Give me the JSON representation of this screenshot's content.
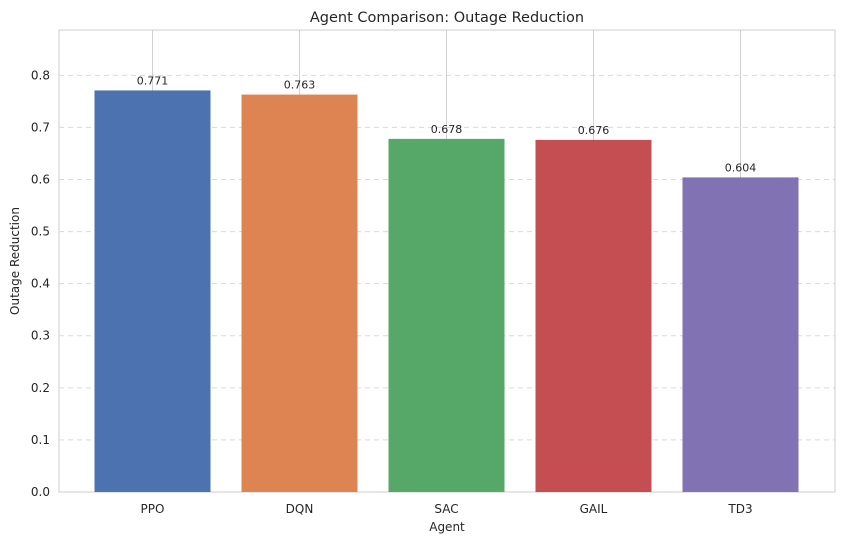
{
  "chart_data": {
    "type": "bar",
    "title": "Agent Comparison: Outage Reduction",
    "xlabel": "Agent",
    "ylabel": "Outage Reduction",
    "categories": [
      "PPO",
      "DQN",
      "SAC",
      "GAIL",
      "TD3"
    ],
    "values": [
      0.771,
      0.763,
      0.678,
      0.676,
      0.604
    ],
    "value_labels": [
      "0.771",
      "0.763",
      "0.678",
      "0.676",
      "0.604"
    ],
    "colors": [
      "#4c72b0",
      "#dd8452",
      "#55a868",
      "#c44e52",
      "#8172b3"
    ],
    "ylim": [
      0,
      0.887
    ],
    "yticks": [
      0.0,
      0.1,
      0.2,
      0.3,
      0.4,
      0.5,
      0.6,
      0.7,
      0.8
    ],
    "ytick_labels": [
      "0.0",
      "0.1",
      "0.2",
      "0.3",
      "0.4",
      "0.5",
      "0.6",
      "0.7",
      "0.8"
    ],
    "grid": {
      "y": "dashed",
      "x": "solid"
    },
    "legend": "none"
  }
}
